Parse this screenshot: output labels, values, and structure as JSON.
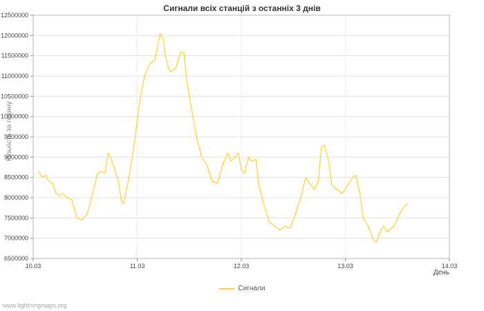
{
  "page": {
    "watermark": "www.lightningmaps.org"
  },
  "chart_data": {
    "type": "line",
    "title": "Сигнали всіх станцій з останніх 3 днів",
    "ylabel": "Кількість за годину",
    "xlabel": "День",
    "legend": "Сигнали",
    "legend_position": "bottom-center",
    "color": "#fdd13a",
    "grid": "light-gray-horizontal-and-vertical",
    "ylim": [
      6500000,
      12500000
    ],
    "ytick_step": 500000,
    "xlim": [
      0,
      4
    ],
    "xtick_positions": [
      0,
      1,
      2,
      3,
      4
    ],
    "xtick_labels": [
      "10.03",
      "11.03",
      "12.03",
      "13.03",
      "14.03"
    ],
    "x": [
      0.05,
      0.09,
      0.12,
      0.15,
      0.19,
      0.22,
      0.25,
      0.29,
      0.32,
      0.37,
      0.42,
      0.47,
      0.52,
      0.57,
      0.62,
      0.65,
      0.69,
      0.72,
      0.75,
      0.79,
      0.82,
      0.85,
      0.87,
      0.92,
      0.97,
      1.02,
      1.07,
      1.12,
      1.17,
      1.22,
      1.25,
      1.27,
      1.3,
      1.32,
      1.37,
      1.42,
      1.45,
      1.47,
      1.52,
      1.57,
      1.62,
      1.67,
      1.72,
      1.77,
      1.82,
      1.87,
      1.9,
      1.94,
      1.97,
      2.0,
      2.03,
      2.07,
      2.1,
      2.14,
      2.17,
      2.22,
      2.27,
      2.32,
      2.37,
      2.42,
      2.47,
      2.52,
      2.57,
      2.62,
      2.67,
      2.7,
      2.74,
      2.77,
      2.8,
      2.84,
      2.87,
      2.92,
      2.97,
      3.02,
      3.07,
      3.1,
      3.14,
      3.17,
      3.22,
      3.27,
      3.3,
      3.34,
      3.37,
      3.4,
      3.44,
      3.47,
      3.52,
      3.57,
      3.6
    ],
    "y": [
      8650000,
      8500000,
      8550000,
      8400000,
      8350000,
      8100000,
      8050000,
      8100000,
      8000000,
      7950000,
      7500000,
      7450000,
      7600000,
      8100000,
      8600000,
      8650000,
      8600000,
      9100000,
      8950000,
      8650000,
      8400000,
      7900000,
      7850000,
      8500000,
      9300000,
      10300000,
      11000000,
      11300000,
      11400000,
      12050000,
      11900000,
      11500000,
      11200000,
      11100000,
      11200000,
      11600000,
      11550000,
      11000000,
      10200000,
      9500000,
      9000000,
      8800000,
      8400000,
      8350000,
      8800000,
      9100000,
      8900000,
      9000000,
      9100000,
      8700000,
      8600000,
      9000000,
      8900000,
      8950000,
      8300000,
      7800000,
      7400000,
      7300000,
      7200000,
      7300000,
      7250000,
      7600000,
      8000000,
      8500000,
      8300000,
      8200000,
      8400000,
      9250000,
      9300000,
      8900000,
      8300000,
      8200000,
      8100000,
      8300000,
      8500000,
      8550000,
      8100000,
      7500000,
      7300000,
      6950000,
      6900000,
      7200000,
      7300000,
      7150000,
      7250000,
      7300000,
      7600000,
      7800000,
      7850000
    ]
  }
}
